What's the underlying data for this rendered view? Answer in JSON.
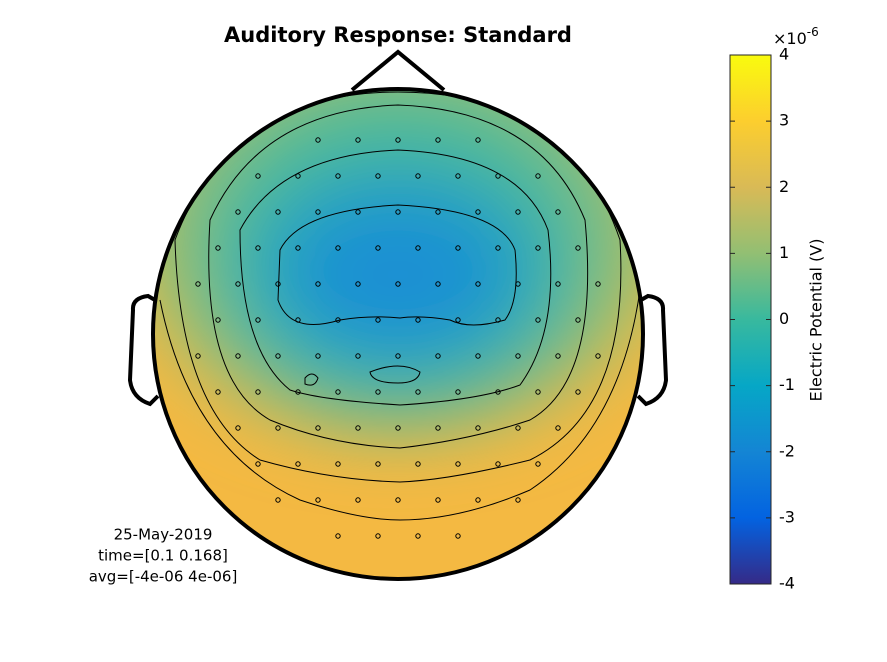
{
  "chart_data": {
    "type": "topoplot",
    "title": "Auditory Response: Standard",
    "annotations": [
      "25-May-2019",
      "time=[0.1 0.168]",
      "avg=[-4e-06 4e-06]"
    ],
    "colorbar": {
      "label": "Electric Potential (V)",
      "multiplier": "×10",
      "exponent": "-6",
      "lim": [
        -4,
        4
      ],
      "ticks": [
        -4,
        -3,
        -2,
        -1,
        0,
        1,
        2,
        3,
        4
      ]
    }
  }
}
